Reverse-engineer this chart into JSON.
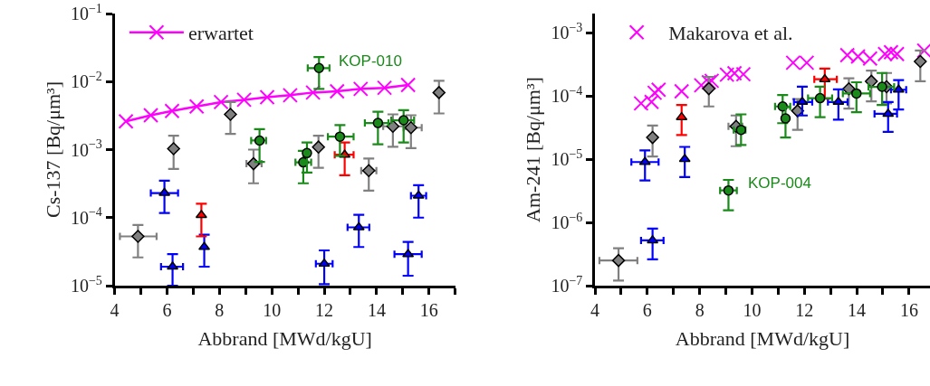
{
  "chart_data": [
    {
      "type": "scatter",
      "xlabel": "Abbrand [MWd/kgU]",
      "ylabel": "Cs-137 [Bq/μm³]",
      "log": "y",
      "grid": false,
      "legend": "top left",
      "xlim": [
        4,
        17
      ],
      "xticks": [
        4,
        {
          "value": 5,
          "label": null
        },
        6,
        {
          "value": 7,
          "label": null
        },
        8,
        {
          "value": 9,
          "label": null
        },
        10,
        {
          "value": 11,
          "label": null
        },
        12,
        {
          "value": 13,
          "label": null
        },
        14,
        {
          "value": 15,
          "label": null
        },
        16,
        {
          "value": 17,
          "label": null
        }
      ],
      "ylim": [
        1e-05,
        0.1
      ],
      "yticks": [
        {
          "value": 1e-05,
          "label": "10$^{−5}$"
        },
        {
          "value": 0.0001,
          "label": "10$^{−4}$"
        },
        {
          "value": 0.001,
          "label": "10$^{−3}$"
        },
        {
          "value": 0.01,
          "label": "10$^{−2}$"
        },
        {
          "value": 0.1,
          "label": "10$^{−1}$"
        }
      ],
      "annotations": [
        {
          "text": "KOP-010",
          "x": 11.8,
          "y": 0.0158
        }
      ],
      "series": [
        {
          "name": "erwartet",
          "type": "line",
          "marker": "cross",
          "color": "#ff00ff",
          "x": [
            4.43,
            5.38,
            6.19,
            7.13,
            8.06,
            8.94,
            9.82,
            10.7,
            11.57,
            12.49,
            13.39,
            14.3,
            15.2
          ],
          "values": [
            0.0026,
            0.0032,
            0.0037,
            0.0043,
            0.005,
            0.0054,
            0.0059,
            0.0063,
            0.0069,
            0.0072,
            0.0078,
            0.0081,
            0.0089
          ]
        },
        {
          "marker": "diamond",
          "color": "#808080",
          "x": [
            4.89,
            6.25,
            8.42,
            9.3,
            11.78,
            13.7,
            14.62,
            15.31,
            16.38
          ],
          "values": [
            5.3e-05,
            0.00103,
            0.0033,
            0.00062,
            0.00109,
            0.00049,
            0.0022,
            0.0021,
            0.0069
          ],
          "errors": [
            [
              2.6e-05,
              7.8e-05
            ],
            [
              0.00052,
              0.0016
            ],
            [
              0.0017,
              0.005
            ],
            [
              0.00032,
              0.001
            ],
            [
              0.00054,
              0.0016
            ],
            [
              0.00025,
              0.00074
            ],
            [
              0.0011,
              0.0033
            ],
            [
              0.00105,
              0.0032
            ],
            [
              0.0034,
              0.0103
            ]
          ],
          "xerrors": [
            [
              4.2,
              5.6
            ],
            null,
            null,
            [
              9.03,
              9.61
            ],
            null,
            [
              13.41,
              13.99
            ],
            [
              14.25,
              15.1
            ],
            [
              15.03,
              15.72
            ],
            null
          ]
        },
        {
          "marker": "triangle",
          "color": "#0000ff",
          "x": [
            5.9,
            6.21,
            7.42,
            12.0,
            13.32,
            15.2,
            15.6
          ],
          "values": [
            0.00023,
            1.9e-05,
            3.7e-05,
            2.1e-05,
            7.2e-05,
            2.9e-05,
            0.00021
          ],
          "errors": [
            [
              0.000117,
              0.00035
            ],
            [
              1e-05,
              2.9e-05
            ],
            [
              1.9e-05,
              5.6e-05
            ],
            [
              1.05e-05,
              3.3e-05
            ],
            [
              3.7e-05,
              0.00011
            ],
            [
              1.4e-05,
              4.4e-05
            ],
            [
              0.0001,
              0.0003
            ]
          ],
          "xerrors": [
            [
              5.38,
              6.42
            ],
            [
              5.77,
              6.61
            ],
            null,
            [
              11.68,
              12.32
            ],
            [
              12.89,
              13.72
            ],
            [
              14.68,
              15.72
            ],
            [
              15.31,
              15.89
            ]
          ]
        },
        {
          "marker": "triangle",
          "color": "#ff0000",
          "x": [
            7.31,
            12.78
          ],
          "values": [
            0.000109,
            0.00084
          ],
          "errors": [
            [
              5.3e-05,
              0.00016
            ],
            [
              0.00042,
              0.00127
            ]
          ],
          "xerrors": [
            null,
            [
              12.4,
              13.12
            ]
          ]
        },
        {
          "color": "#1a8a1a",
          "x": [
            11.8,
            9.53,
            11.2,
            11.34,
            12.6,
            14.05,
            15.03
          ],
          "values": [
            0.0158,
            0.00136,
            0.00065,
            0.00089,
            0.00155,
            0.00246,
            0.0027
          ],
          "errors": [
            [
              0.0078,
              0.023
            ],
            [
              0.00066,
              0.002
            ],
            [
              0.00032,
              0.00096
            ],
            [
              0.00046,
              0.00127
            ],
            [
              0.00081,
              0.0023
            ],
            [
              0.0012,
              0.0036
            ],
            [
              0.00127,
              0.0038
            ]
          ],
          "xerrors": [
            [
              11.37,
              12.2
            ],
            [
              9.21,
              9.78
            ],
            [
              10.9,
              11.5
            ],
            null,
            [
              12.14,
              13.12
            ],
            [
              13.55,
              14.45
            ],
            [
              14.56,
              15.43
            ]
          ]
        }
      ]
    },
    {
      "type": "scatter",
      "xlabel": "Abbrand [MWd/kgU]",
      "ylabel": "Am-241 [Bq/μm³]",
      "log": "y",
      "grid": false,
      "legend": "top left",
      "xlim": [
        4,
        16.8
      ],
      "xticks": [
        4,
        {
          "value": 5,
          "label": null
        },
        6,
        {
          "value": 7,
          "label": null
        },
        8,
        {
          "value": 9,
          "label": null
        },
        10,
        {
          "value": 11,
          "label": null
        },
        12,
        {
          "value": 13,
          "label": null
        },
        14,
        {
          "value": 15,
          "label": null
        },
        16
      ],
      "ylim": [
        1e-07,
        0.002
      ],
      "yticks": [
        {
          "value": 1e-07,
          "label": "10$^{−7}$"
        },
        {
          "value": 1e-06,
          "label": "10$^{−6}$"
        },
        {
          "value": 1e-05,
          "label": "10$^{−5}$"
        },
        {
          "value": 0.0001,
          "label": "10$^{−4}$"
        },
        {
          "value": 0.001,
          "label": "10$^{−3}$"
        }
      ],
      "annotations": [
        {
          "text": "KOP-004",
          "x": 9.1,
          "y": 3.2e-06
        }
      ],
      "series": [
        {
          "name": "Makarova et al.",
          "marker": "cross",
          "color": "#ff00ff",
          "x": [
            5.76,
            6.16,
            6.28,
            6.43,
            7.31,
            8.06,
            8.35,
            8.46,
            9.04,
            9.33,
            9.67,
            11.57,
            12.09,
            13.64,
            14.05,
            14.51,
            15.08,
            15.31,
            15.54,
            16.58
          ],
          "values": [
            7.6e-05,
            8e-05,
            0.000112,
            0.000125,
            0.000118,
            0.000147,
            0.000164,
            0.000173,
            0.000216,
            0.000228,
            0.00022,
            0.000334,
            0.000334,
            0.00044,
            0.00042,
            0.00039,
            0.00046,
            0.00049,
            0.00046,
            0.00052
          ]
        },
        {
          "marker": "diamond",
          "color": "#808080",
          "x": [
            4.9,
            6.2,
            8.35,
            9.39,
            11.74,
            13.7,
            14.56,
            15.14,
            16.43
          ],
          "values": [
            2.5e-07,
            2.2e-05,
            0.00013,
            3.3e-05,
            5.8e-05,
            0.000129,
            0.00017,
            0.000139,
            0.00035
          ],
          "errors": [
            [
              1.2e-07,
              3.9e-07
            ],
            [
              1.1e-05,
              3.4e-05
            ],
            [
              6.8e-05,
              0.0002
            ],
            [
              1.6e-05,
              4.9e-05
            ],
            [
              2.9e-05,
              8.9e-05
            ],
            [
              6.3e-05,
              0.00019
            ],
            [
              8.2e-05,
              0.00025
            ],
            [
              7.6e-05,
              0.00023
            ],
            [
              0.00017,
              0.00052
            ]
          ],
          "xerrors": [
            [
              4.17,
              5.62
            ],
            null,
            null,
            [
              9.1,
              9.63
            ],
            null,
            null,
            null,
            null,
            null
          ]
        },
        {
          "marker": "triangle",
          "color": "#0000ff",
          "x": [
            5.91,
            6.2,
            7.43,
            11.92,
            13.3,
            15.2,
            15.6
          ],
          "values": [
            9e-06,
            5.2e-07,
            1e-05,
            8e-05,
            8e-05,
            5.2e-05,
            0.000125
          ],
          "errors": [
            [
              4.6e-06,
              1.37e-05
            ],
            [
              2.6e-07,
              8e-07
            ],
            [
              5.2e-06,
              1.56e-05
            ],
            [
              4.9e-05,
              0.00014
            ],
            [
              4.2e-05,
              0.000127
            ],
            [
              2.7e-05,
              8e-05
            ],
            [
              6.1e-05,
              0.000177
            ]
          ],
          "xerrors": [
            [
              5.39,
              6.43
            ],
            [
              5.76,
              6.62
            ],
            null,
            [
              11.6,
              12.3
            ],
            [
              12.9,
              13.65
            ],
            [
              14.68,
              15.54
            ],
            [
              15.31,
              15.89
            ]
          ]
        },
        {
          "marker": "triangle",
          "color": "#ff0000",
          "x": [
            7.31,
            12.78
          ],
          "values": [
            4.6e-05,
            0.000183
          ],
          "errors": [
            [
              2.4e-05,
              7.2e-05
            ],
            [
              9e-05,
              0.00027
            ]
          ],
          "xerrors": [
            null,
            [
              12.38,
              13.24
            ]
          ]
        },
        {
          "color": "#1a8a1a",
          "x": [
            9.1,
            9.58,
            11.17,
            11.28,
            12.6,
            13.99,
            14.97
          ],
          "values": [
            3.2e-06,
            2.9e-05,
            6.8e-05,
            4.4e-05,
            9.2e-05,
            0.000109,
            0.000139
          ],
          "errors": [
            [
              1.55e-06,
              4.7e-06
            ],
            [
              1.67e-05,
              5.1e-05
            ],
            [
              3.7e-05,
              0.000103
            ],
            [
              2.2e-05,
              6.6e-05
            ],
            [
              4.6e-05,
              0.00014
            ],
            [
              5.5e-05,
              0.000164
            ],
            [
              7.2e-05,
              0.00023
            ]
          ],
          "xerrors": [
            [
              8.78,
              9.42
            ],
            [
              9.3,
              9.75
            ],
            [
              10.88,
              11.46
            ],
            null,
            [
              12.14,
              13.06
            ],
            [
              13.47,
              14.51
            ],
            [
              14.45,
              15.43
            ]
          ]
        }
      ]
    }
  ]
}
